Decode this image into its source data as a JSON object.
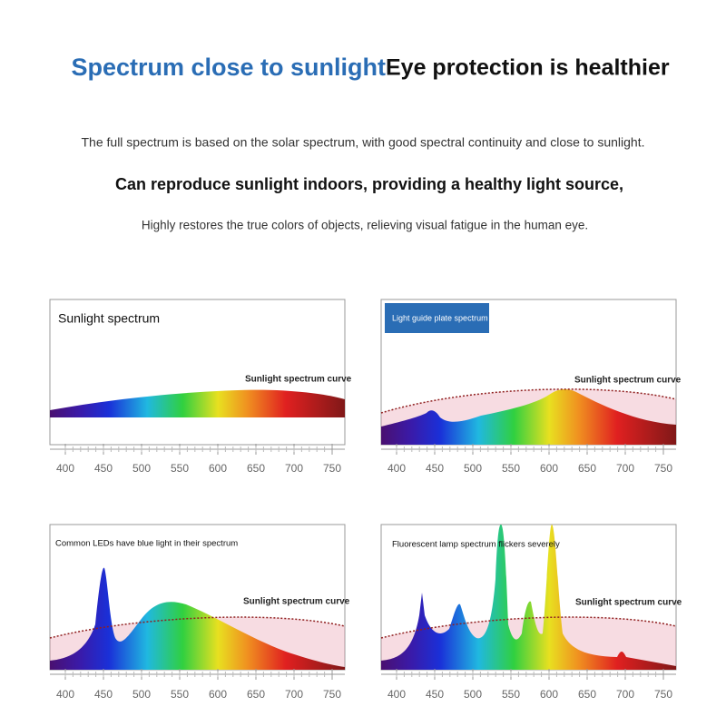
{
  "header": {
    "title_blue": "Spectrum close to sunlight",
    "title_black": "Eye protection is healthier"
  },
  "intro": [
    "The full spectrum is based on the solar spectrum, with good spectral continuity and close to sunlight.",
    "Can reproduce sunlight indoors, providing a healthy light source,",
    "Highly restores the true colors of objects, relieving visual fatigue in the human eye."
  ],
  "panels": [
    {
      "title": "Sunlight spectrum",
      "curve_label": "Sunlight spectrum curve"
    },
    {
      "title": "Light guide plate spectrum",
      "curve_label": "Sunlight spectrum curve"
    },
    {
      "title": "Common LEDs have blue light in their spectrum",
      "curve_label": "Sunlight spectrum curve"
    },
    {
      "title": "Fluorescent lamp spectrum flickers severely",
      "curve_label": "Sunlight spectrum curve"
    }
  ],
  "axis_ticks": [
    400,
    450,
    500,
    550,
    600,
    650,
    700,
    750
  ]
}
